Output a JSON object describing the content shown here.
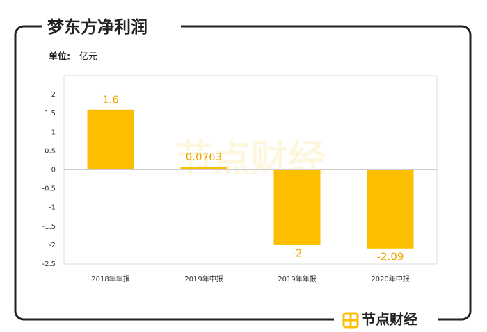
{
  "chart_data": {
    "type": "bar",
    "title": "梦东方净利润",
    "unit_prefix": "单位:",
    "unit": "亿元",
    "categories": [
      "2018年年报",
      "2019年中报",
      "2019年年报",
      "2020年中报"
    ],
    "values": [
      1.6,
      0.0763,
      -2,
      -2.09
    ],
    "color": "#fbbf00",
    "label_color": "#eea400",
    "ylim": [
      -2.5,
      2.5
    ],
    "yticks": [
      -2.5,
      -2,
      -1.5,
      -1,
      -0.5,
      0,
      0.5,
      1,
      1.5,
      2
    ],
    "grid": false
  },
  "brand": "节点财经"
}
